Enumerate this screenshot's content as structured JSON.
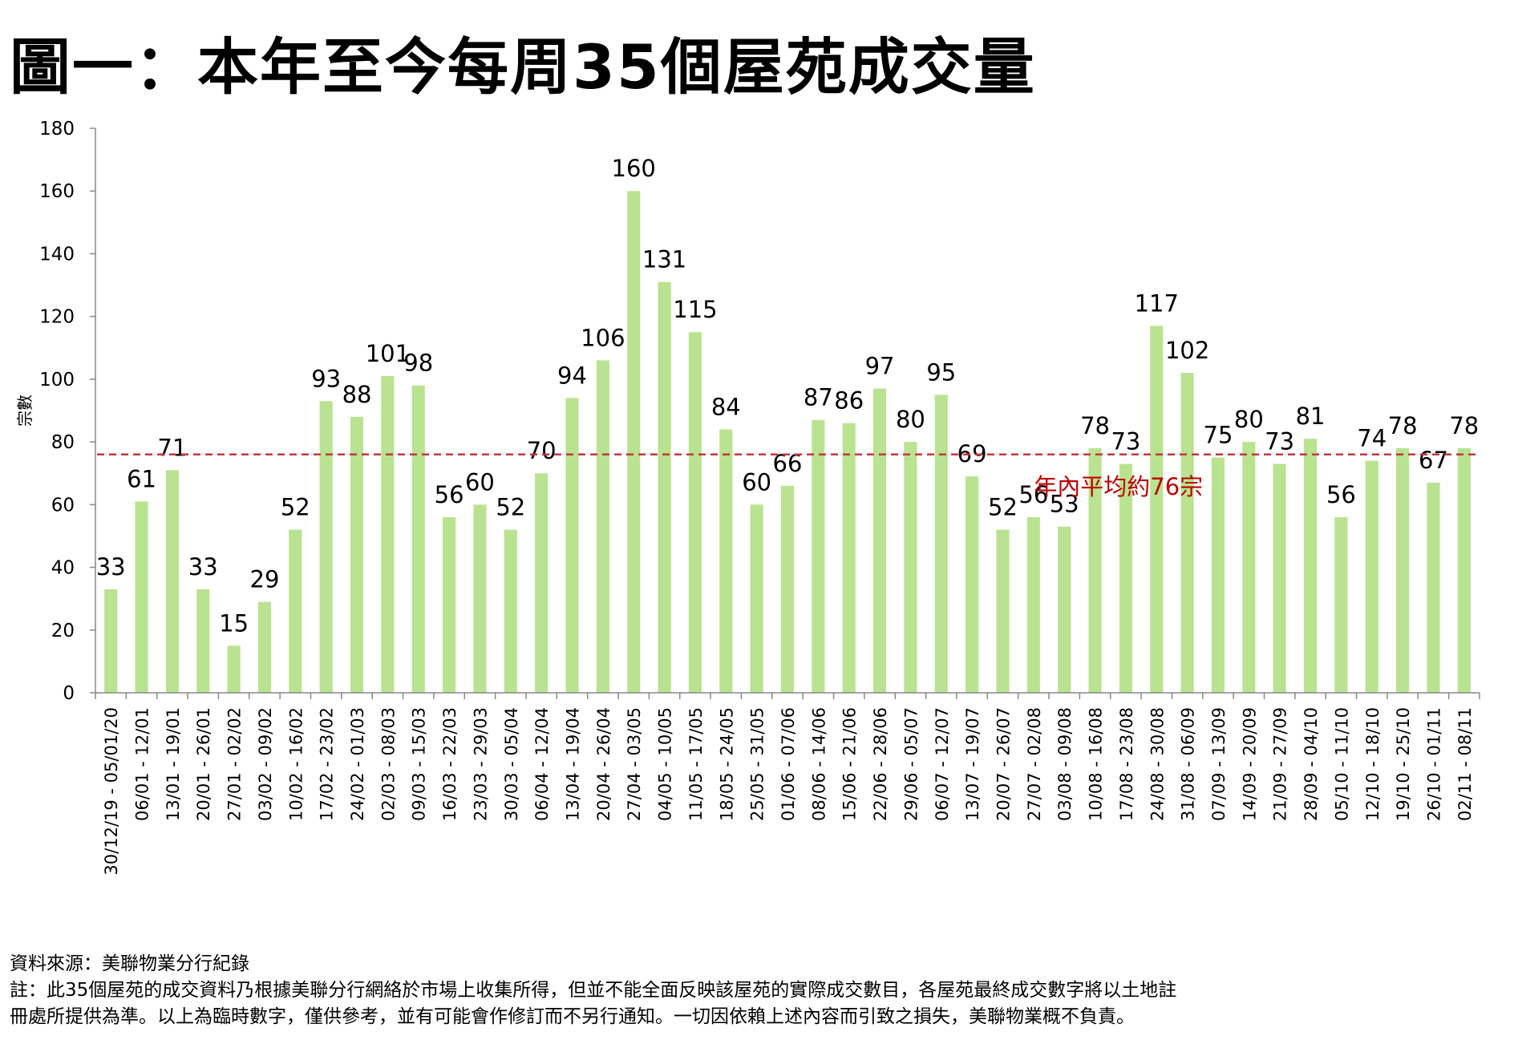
{
  "title": "圖一：本年至今每周35個屋苑成交量",
  "source": "資料來源：美聯物業分行紀錄",
  "note_line1": "註：此35個屋苑的成交資料乃根據美聯分行網絡於市場上收集所得，但並不能全面反映該屋苑的實際成交數目，各屋苑最終成交數字將以土地註",
  "note_line2": "冊處所提供為準。以上為臨時數字，僅供參考，並有可能會作修訂而不另行通知。一切因依賴上述內容而引致之損失，美聯物業概不負責。",
  "colors": {
    "bar": "#b9e390",
    "avg_line": "#c0393b",
    "avg_label": "#c00000"
  },
  "chart_data": {
    "type": "bar",
    "ylabel": "宗數",
    "ylim": [
      0,
      180
    ],
    "yticks": [
      0,
      20,
      40,
      60,
      80,
      100,
      120,
      140,
      160,
      180
    ],
    "categories": [
      "30/12/19 - 05/01/20",
      "06/01 - 12/01",
      "13/01 - 19/01",
      "20/01 - 26/01",
      "27/01 - 02/02",
      "03/02 - 09/02",
      "10/02 - 16/02",
      "17/02 - 23/02",
      "24/02 - 01/03",
      "02/03 - 08/03",
      "09/03 - 15/03",
      "16/03 - 22/03",
      "23/03 - 29/03",
      "30/03 - 05/04",
      "06/04 - 12/04",
      "13/04 - 19/04",
      "20/04 - 26/04",
      "27/04 - 03/05",
      "04/05 - 10/05",
      "11/05 - 17/05",
      "18/05 - 24/05",
      "25/05 - 31/05",
      "01/06 - 07/06",
      "08/06 - 14/06",
      "15/06 - 21/06",
      "22/06 - 28/06",
      "29/06 - 05/07",
      "06/07 - 12/07",
      "13/07 - 19/07",
      "20/07 - 26/07",
      "27/07 - 02/08",
      "03/08 - 09/08",
      "10/08 - 16/08",
      "17/08 - 23/08",
      "24/08 - 30/08",
      "31/08 - 06/09",
      "07/09 - 13/09",
      "14/09 - 20/09",
      "21/09 - 27/09",
      "28/09 - 04/10",
      "05/10 - 11/10",
      "12/10 - 18/10",
      "19/10 - 25/10",
      "26/10 - 01/11",
      "02/11 - 08/11"
    ],
    "values": [
      33,
      61,
      71,
      33,
      15,
      29,
      52,
      93,
      88,
      101,
      98,
      56,
      60,
      52,
      70,
      94,
      106,
      160,
      131,
      115,
      84,
      60,
      66,
      87,
      86,
      97,
      80,
      95,
      69,
      52,
      56,
      53,
      78,
      73,
      117,
      102,
      75,
      80,
      73,
      81,
      56,
      74,
      78,
      67,
      78
    ],
    "average": {
      "value": 76,
      "label": "年內平均約76宗"
    },
    "grid": false,
    "legend": "none"
  }
}
